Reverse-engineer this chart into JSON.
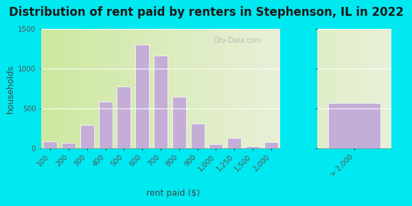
{
  "title": "Distribution of rent paid by renters in Stephenson, IL in 2022",
  "xlabel": "rent paid ($)",
  "ylabel": "households",
  "categories_main": [
    "100",
    "200",
    "300",
    "400",
    "500",
    "600",
    "700",
    "800",
    "900",
    "1,000",
    "1,250",
    "1,500",
    "2,000"
  ],
  "values_main": [
    85,
    65,
    290,
    590,
    780,
    1300,
    1160,
    650,
    310,
    50,
    130,
    30,
    80
  ],
  "category_last": "> 2,000",
  "value_last": 570,
  "bar_color": "#c4aed8",
  "bar_edge_color": "#e0d0ee",
  "background_outer": "#00e8f0",
  "background_inner": "#d8edbb",
  "ylim": [
    0,
    1500
  ],
  "yticks": [
    0,
    500,
    1000,
    1500
  ],
  "title_fontsize": 12,
  "axis_label_fontsize": 9,
  "tick_fontsize": 7.5,
  "watermark_text": "City-Data.com"
}
